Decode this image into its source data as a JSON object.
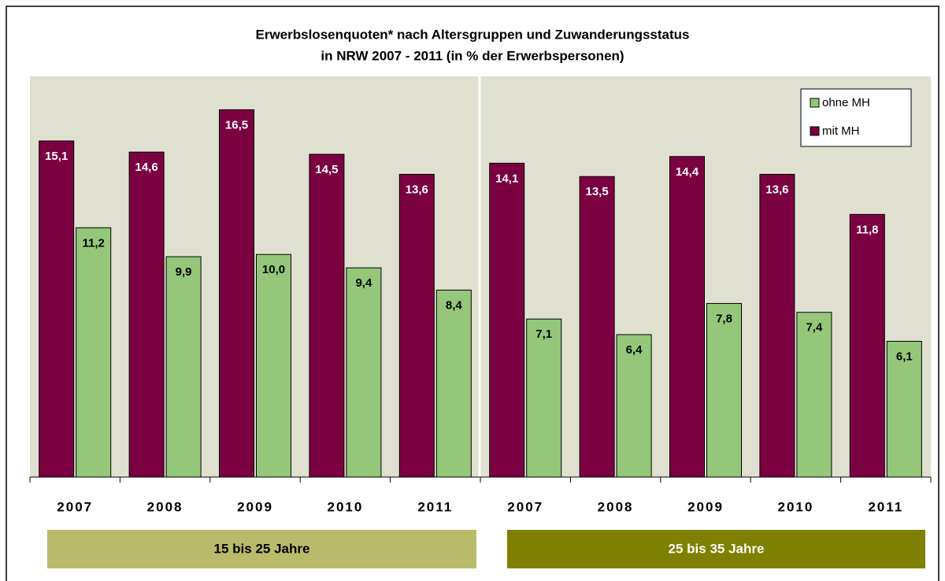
{
  "chart_data": {
    "type": "bar",
    "title": "Erwerbslosenquoten* nach Altersgruppen und Zuwanderungsstatus",
    "subtitle": "in NRW 2007 - 2011 (in % der Erwerbspersonen)",
    "categories": [
      "2007",
      "2008",
      "2009",
      "2010",
      "2011",
      "2007",
      "2008",
      "2009",
      "2010",
      "2011"
    ],
    "groups": [
      "15 bis 25 Jahre",
      "25 bis 35 Jahre"
    ],
    "group_colors": [
      "#b9bb6b",
      "#808000"
    ],
    "series": [
      {
        "name": "ohne MH",
        "color": "#94c77a",
        "values": [
          11.2,
          9.9,
          10.0,
          9.4,
          8.4,
          7.1,
          6.4,
          7.8,
          7.4,
          6.1
        ],
        "value_labels": [
          "11,2",
          "9,9",
          "10,0",
          "9,4",
          "8,4",
          "7,1",
          "6,4",
          "7,8",
          "7,4",
          "6,1"
        ]
      },
      {
        "name": "mit MH",
        "color": "#7b0041",
        "values": [
          15.1,
          14.6,
          16.5,
          14.5,
          13.6,
          14.1,
          13.5,
          14.4,
          13.6,
          11.8
        ],
        "value_labels": [
          "15,1",
          "14,6",
          "16,5",
          "14,5",
          "13,6",
          "14,1",
          "13,5",
          "14,4",
          "13,6",
          "11,8"
        ]
      }
    ],
    "ylim": [
      0,
      18
    ],
    "legend": "upper right"
  }
}
